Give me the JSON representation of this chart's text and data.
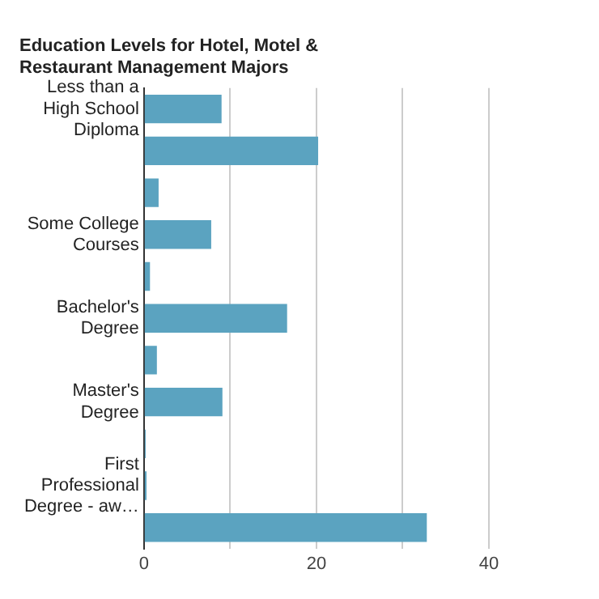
{
  "chart_data": {
    "type": "bar",
    "orientation": "horizontal",
    "title": "Education Levels for Hotel, Motel & Restaurant Management Majors",
    "categories": [
      "Less than a High School Diploma",
      null,
      null,
      "Some College Courses",
      null,
      "Bachelor's Degree",
      null,
      "Master's Degree",
      null,
      "First Professional Degree - aw…",
      null
    ],
    "values": [
      9,
      20.2,
      1.7,
      7.8,
      0.7,
      16.6,
      1.5,
      9.1,
      0.2,
      0.3,
      32.8
    ],
    "color": "#5ba3c0",
    "xlim": [
      0,
      40
    ],
    "xticks": [
      0,
      {
        "value": 10,
        "label": null
      },
      20,
      {
        "value": 30,
        "label": null
      },
      40
    ],
    "grid": "x",
    "legend": false
  }
}
